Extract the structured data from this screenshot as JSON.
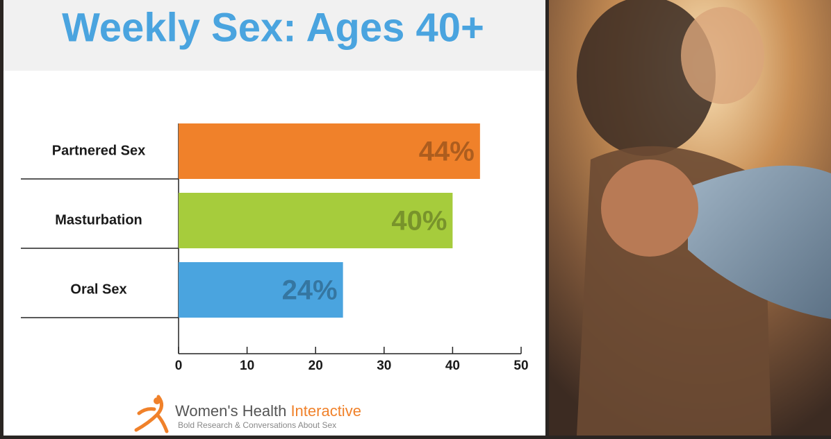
{
  "chart_data": {
    "type": "bar",
    "orientation": "horizontal",
    "title": "Weekly Sex: Ages 40+",
    "categories": [
      "Partnered Sex",
      "Masturbation",
      "Oral Sex"
    ],
    "values": [
      44,
      40,
      24
    ],
    "value_labels": [
      "44%",
      "40%",
      "24%"
    ],
    "colors": [
      "#f0812a",
      "#a6cc3c",
      "#4aa4df"
    ],
    "xlim": [
      0,
      50
    ],
    "xticks": [
      0,
      10,
      20,
      30,
      40,
      50
    ]
  },
  "logo": {
    "name": "Women's Health",
    "highlight": "Interactive",
    "tagline": "Bold Research & Conversations About Sex"
  }
}
